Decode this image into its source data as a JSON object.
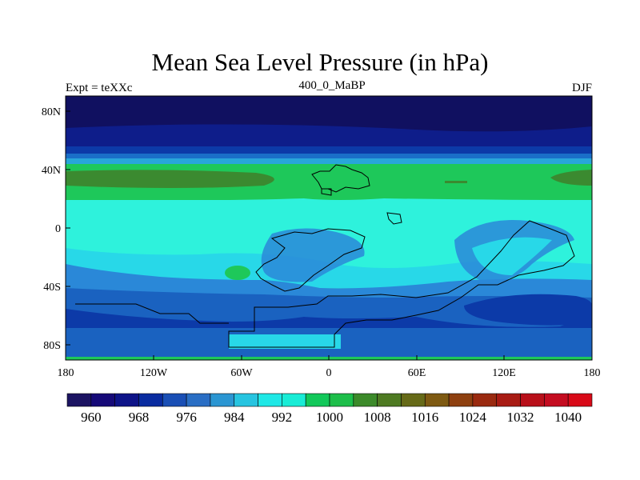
{
  "title": "Mean Sea Level Pressure (in hPa)",
  "left_label": "Expt = teXXc",
  "center_label": "400_0_MaBP",
  "right_label": "DJF",
  "lat_ticks": [
    "80N",
    "40N",
    "0",
    "40S",
    "80S"
  ],
  "lon_ticks": [
    "180",
    "120W",
    "60W",
    "0",
    "60E",
    "120E",
    "180"
  ],
  "colorbar": {
    "labels": [
      "960",
      "968",
      "976",
      "984",
      "992",
      "1000",
      "1008",
      "1016",
      "1024",
      "1032",
      "1040"
    ],
    "colors": [
      "#1c1462",
      "#160a78",
      "#0e1488",
      "#0a2ca0",
      "#1a4fb5",
      "#2a6ec4",
      "#2b96d2",
      "#27c4e0",
      "#1fe8e6",
      "#19ecd6",
      "#12c85a",
      "#1ebe4a",
      "#3c8a2a",
      "#4e7a22",
      "#666a18",
      "#7e5a12",
      "#8e4010",
      "#9a2a10",
      "#a81c14",
      "#b8101a",
      "#c40c20",
      "#d80a18"
    ]
  },
  "map_colors": {
    "polar_dark": "#101060",
    "band_1": "#0e1d8a",
    "band_2": "#0c3aa8",
    "band_3": "#1a6fc8",
    "band_4": "#28a6da",
    "green": "#1ec85a",
    "olive": "#3b8a30",
    "cyan_light": "#2ef2dc",
    "cyan_mid": "#28d8e8",
    "blue_mid": "#2a88d8",
    "blue_south": "#1a62c0",
    "blue_deep": "#0c3aa8"
  }
}
